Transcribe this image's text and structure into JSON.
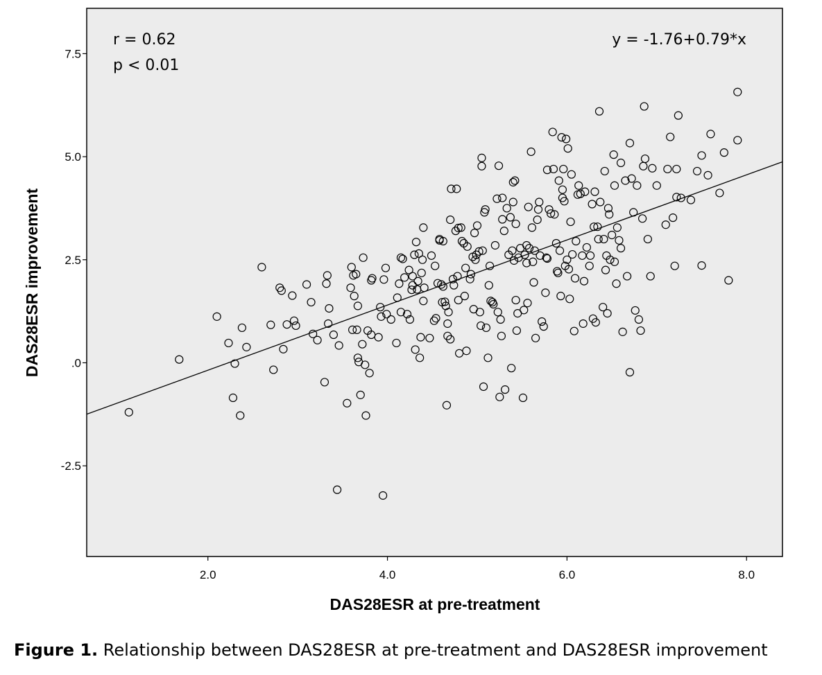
{
  "chart_data": {
    "type": "scatter",
    "xlabel": "DAS28ESR at pre-treatment",
    "ylabel": "DAS28ESR improvement",
    "xlim": [
      0.65,
      8.4
    ],
    "ylim": [
      -4.7,
      8.6
    ],
    "x_ticks": [
      {
        "value": 2.0,
        "label": "2.0"
      },
      {
        "value": 4.0,
        "label": "4.0"
      },
      {
        "value": 6.0,
        "label": "6.0"
      },
      {
        "value": 8.0,
        "label": "8.0"
      }
    ],
    "y_ticks": [
      {
        "value": 7.5,
        "label": "7.5"
      },
      {
        "value": 5.0,
        "label": "5.0"
      },
      {
        "value": 2.5,
        "label": "2.5"
      },
      {
        "value": 0.0,
        "label": ".0"
      },
      {
        "value": -2.5,
        "label": "-2.5"
      }
    ],
    "grid": false,
    "background": "#ececec",
    "marker": "open-circle",
    "annotations": {
      "r": "r = 0.62",
      "p": "p < 0.01",
      "equation": "y = -1.76+0.79*x"
    },
    "fit_line": {
      "intercept": -1.76,
      "slope": 0.79
    },
    "series": [
      {
        "points": [
          [
            1.12,
            -1.2
          ],
          [
            1.68,
            0.08
          ],
          [
            2.1,
            1.12
          ],
          [
            2.23,
            0.48
          ],
          [
            2.28,
            -0.85
          ],
          [
            2.3,
            -0.02
          ],
          [
            2.36,
            -1.28
          ],
          [
            2.38,
            0.85
          ],
          [
            2.43,
            0.38
          ],
          [
            2.6,
            2.32
          ],
          [
            2.7,
            0.92
          ],
          [
            2.73,
            -0.17
          ],
          [
            2.8,
            1.82
          ],
          [
            2.82,
            1.75
          ],
          [
            2.84,
            0.33
          ],
          [
            2.88,
            0.93
          ],
          [
            2.94,
            1.63
          ],
          [
            2.96,
            1.02
          ],
          [
            2.98,
            0.9
          ],
          [
            3.1,
            1.9
          ],
          [
            3.15,
            1.47
          ],
          [
            3.17,
            0.7
          ],
          [
            3.22,
            0.55
          ],
          [
            3.3,
            -0.47
          ],
          [
            3.32,
            1.92
          ],
          [
            3.33,
            2.12
          ],
          [
            3.34,
            0.95
          ],
          [
            3.35,
            1.32
          ],
          [
            3.4,
            0.68
          ],
          [
            3.44,
            -3.08
          ],
          [
            3.46,
            0.42
          ],
          [
            3.55,
            -0.98
          ],
          [
            3.59,
            1.82
          ],
          [
            3.6,
            2.32
          ],
          [
            3.61,
            0.8
          ],
          [
            3.62,
            2.12
          ],
          [
            3.63,
            1.62
          ],
          [
            3.65,
            2.15
          ],
          [
            3.66,
            0.8
          ],
          [
            3.67,
            1.38
          ],
          [
            3.67,
            0.12
          ],
          [
            3.68,
            0.02
          ],
          [
            3.7,
            -0.78
          ],
          [
            3.72,
            0.45
          ],
          [
            3.73,
            2.55
          ],
          [
            3.75,
            -0.05
          ],
          [
            3.76,
            -1.28
          ],
          [
            3.78,
            0.78
          ],
          [
            3.8,
            -0.25
          ],
          [
            3.82,
            0.68
          ],
          [
            3.83,
            2.05
          ],
          [
            3.9,
            0.62
          ],
          [
            3.92,
            1.35
          ],
          [
            3.93,
            1.12
          ],
          [
            3.95,
            -3.22
          ],
          [
            3.96,
            2.02
          ],
          [
            3.98,
            2.3
          ],
          [
            3.99,
            1.18
          ],
          [
            4.04,
            1.05
          ],
          [
            4.1,
            0.48
          ],
          [
            4.11,
            1.58
          ],
          [
            4.13,
            1.92
          ],
          [
            4.15,
            1.23
          ],
          [
            4.17,
            2.52
          ],
          [
            4.19,
            2.07
          ],
          [
            4.22,
            1.18
          ],
          [
            4.24,
            2.25
          ],
          [
            4.25,
            1.05
          ],
          [
            4.27,
            1.77
          ],
          [
            4.28,
            1.88
          ],
          [
            4.28,
            2.1
          ],
          [
            4.3,
            2.62
          ],
          [
            4.31,
            0.32
          ],
          [
            4.32,
            2.93
          ],
          [
            4.33,
            1.78
          ],
          [
            4.34,
            1.98
          ],
          [
            4.35,
            2.65
          ],
          [
            4.36,
            0.12
          ],
          [
            4.37,
            0.62
          ],
          [
            4.38,
            2.18
          ],
          [
            4.39,
            2.5
          ],
          [
            4.4,
            1.5
          ],
          [
            4.4,
            3.28
          ],
          [
            4.41,
            1.82
          ],
          [
            4.47,
            0.6
          ],
          [
            4.49,
            2.6
          ],
          [
            4.52,
            1.02
          ],
          [
            4.53,
            2.35
          ],
          [
            4.54,
            1.08
          ],
          [
            4.56,
            1.93
          ],
          [
            4.58,
            2.97
          ],
          [
            4.58,
            3.0
          ],
          [
            4.6,
            1.9
          ],
          [
            4.61,
            1.47
          ],
          [
            4.62,
            1.85
          ],
          [
            4.64,
            1.48
          ],
          [
            4.65,
            1.38
          ],
          [
            4.66,
            -1.03
          ],
          [
            4.67,
            0.95
          ],
          [
            4.67,
            0.65
          ],
          [
            4.68,
            1.23
          ],
          [
            4.7,
            0.57
          ],
          [
            4.7,
            3.47
          ],
          [
            4.71,
            4.22
          ],
          [
            4.73,
            2.03
          ],
          [
            4.74,
            1.88
          ],
          [
            4.76,
            3.2
          ],
          [
            4.77,
            4.22
          ],
          [
            4.78,
            2.1
          ],
          [
            4.79,
            1.52
          ],
          [
            4.79,
            3.27
          ],
          [
            4.8,
            0.23
          ],
          [
            4.82,
            3.28
          ],
          [
            4.83,
            2.95
          ],
          [
            4.85,
            2.9
          ],
          [
            4.86,
            1.62
          ],
          [
            4.87,
            2.3
          ],
          [
            4.88,
            0.29
          ],
          [
            4.89,
            2.82
          ],
          [
            4.92,
            2.03
          ],
          [
            4.93,
            2.15
          ],
          [
            4.95,
            2.57
          ],
          [
            4.96,
            1.3
          ],
          [
            4.97,
            3.15
          ],
          [
            4.98,
            2.5
          ],
          [
            4.99,
            2.62
          ],
          [
            5.0,
            3.33
          ],
          [
            5.02,
            2.7
          ],
          [
            5.03,
            1.23
          ],
          [
            5.04,
            0.9
          ],
          [
            5.05,
            4.97
          ],
          [
            5.05,
            4.77
          ],
          [
            5.06,
            2.72
          ],
          [
            5.07,
            -0.58
          ],
          [
            5.08,
            3.65
          ],
          [
            5.09,
            3.72
          ],
          [
            5.1,
            0.85
          ],
          [
            5.12,
            0.12
          ],
          [
            5.13,
            1.88
          ],
          [
            5.14,
            2.35
          ],
          [
            5.15,
            1.5
          ],
          [
            5.17,
            1.47
          ],
          [
            5.18,
            1.42
          ],
          [
            5.2,
            2.85
          ],
          [
            5.22,
            3.98
          ],
          [
            5.23,
            1.23
          ],
          [
            5.24,
            4.78
          ],
          [
            5.25,
            -0.83
          ],
          [
            5.26,
            1.05
          ],
          [
            5.27,
            0.65
          ],
          [
            5.28,
            3.48
          ],
          [
            5.3,
            3.2
          ],
          [
            5.31,
            -0.65
          ],
          [
            5.33,
            3.75
          ],
          [
            5.35,
            2.62
          ],
          [
            5.37,
            3.53
          ],
          [
            5.38,
            -0.13
          ],
          [
            5.39,
            2.72
          ],
          [
            5.4,
            3.9
          ],
          [
            5.4,
            4.38
          ],
          [
            5.41,
            2.48
          ],
          [
            5.42,
            4.42
          ],
          [
            5.43,
            1.52
          ],
          [
            5.43,
            3.37
          ],
          [
            5.44,
            0.78
          ],
          [
            5.45,
            1.2
          ],
          [
            5.46,
            2.55
          ],
          [
            5.48,
            2.78
          ],
          [
            5.51,
            -0.85
          ],
          [
            5.52,
            1.28
          ],
          [
            5.53,
            2.62
          ],
          [
            5.55,
            2.42
          ],
          [
            5.56,
            1.45
          ],
          [
            5.57,
            3.78
          ],
          [
            5.58,
            2.78
          ],
          [
            5.6,
            5.12
          ],
          [
            5.61,
            3.28
          ],
          [
            5.62,
            2.45
          ],
          [
            5.63,
            1.95
          ],
          [
            5.64,
            2.72
          ],
          [
            5.65,
            0.6
          ],
          [
            5.67,
            3.47
          ],
          [
            5.68,
            3.72
          ],
          [
            5.69,
            3.9
          ],
          [
            5.7,
            2.6
          ],
          [
            5.72,
            1.0
          ],
          [
            5.74,
            0.88
          ],
          [
            5.76,
            1.7
          ],
          [
            5.77,
            2.55
          ],
          [
            5.78,
            2.53
          ],
          [
            5.78,
            4.68
          ],
          [
            5.8,
            3.72
          ],
          [
            5.82,
            3.62
          ],
          [
            5.84,
            5.6
          ],
          [
            5.85,
            4.7
          ],
          [
            5.86,
            3.6
          ],
          [
            5.88,
            2.9
          ],
          [
            5.89,
            2.22
          ],
          [
            5.9,
            2.18
          ],
          [
            5.91,
            4.42
          ],
          [
            5.92,
            2.72
          ],
          [
            5.93,
            1.62
          ],
          [
            5.94,
            5.47
          ],
          [
            5.95,
            4.2
          ],
          [
            5.95,
            4.0
          ],
          [
            5.96,
            4.7
          ],
          [
            5.97,
            3.92
          ],
          [
            5.98,
            2.35
          ],
          [
            5.99,
            5.43
          ],
          [
            6.0,
            2.5
          ],
          [
            6.01,
            5.2
          ],
          [
            6.02,
            2.27
          ],
          [
            6.03,
            1.55
          ],
          [
            6.04,
            3.42
          ],
          [
            6.05,
            4.57
          ],
          [
            6.06,
            2.63
          ],
          [
            6.08,
            0.77
          ],
          [
            6.09,
            2.05
          ],
          [
            6.1,
            2.95
          ],
          [
            6.12,
            4.08
          ],
          [
            6.13,
            4.3
          ],
          [
            6.15,
            4.1
          ],
          [
            6.17,
            2.6
          ],
          [
            6.18,
            0.95
          ],
          [
            6.19,
            1.98
          ],
          [
            6.2,
            4.15
          ],
          [
            6.22,
            2.8
          ],
          [
            6.25,
            2.35
          ],
          [
            6.26,
            2.6
          ],
          [
            6.28,
            3.85
          ],
          [
            6.29,
            1.07
          ],
          [
            6.3,
            3.3
          ],
          [
            6.31,
            4.15
          ],
          [
            6.32,
            0.98
          ],
          [
            6.34,
            3.3
          ],
          [
            6.35,
            3.0
          ],
          [
            6.36,
            6.1
          ],
          [
            6.37,
            3.9
          ],
          [
            6.4,
            1.35
          ],
          [
            6.41,
            3.0
          ],
          [
            6.42,
            4.65
          ],
          [
            6.43,
            2.25
          ],
          [
            6.44,
            2.6
          ],
          [
            6.45,
            1.2
          ],
          [
            6.46,
            3.75
          ],
          [
            6.47,
            3.6
          ],
          [
            6.48,
            2.5
          ],
          [
            6.5,
            3.1
          ],
          [
            6.52,
            5.05
          ],
          [
            6.53,
            2.45
          ],
          [
            6.53,
            4.3
          ],
          [
            6.55,
            1.92
          ],
          [
            6.58,
            2.97
          ],
          [
            6.6,
            2.78
          ],
          [
            6.6,
            4.85
          ],
          [
            6.62,
            0.75
          ],
          [
            6.65,
            4.42
          ],
          [
            6.67,
            2.1
          ],
          [
            6.7,
            5.33
          ],
          [
            6.7,
            -0.23
          ],
          [
            6.72,
            4.47
          ],
          [
            6.74,
            3.65
          ],
          [
            6.76,
            1.27
          ],
          [
            6.78,
            4.3
          ],
          [
            6.8,
            1.05
          ],
          [
            6.82,
            0.78
          ],
          [
            6.84,
            3.5
          ],
          [
            6.85,
            4.77
          ],
          [
            6.86,
            6.22
          ],
          [
            6.87,
            4.95
          ],
          [
            6.9,
            3.0
          ],
          [
            6.93,
            2.1
          ],
          [
            6.95,
            4.72
          ],
          [
            7.0,
            4.3
          ],
          [
            7.1,
            3.35
          ],
          [
            7.12,
            4.7
          ],
          [
            7.15,
            5.48
          ],
          [
            7.18,
            3.52
          ],
          [
            7.2,
            2.35
          ],
          [
            7.22,
            4.7
          ],
          [
            7.24,
            6.0
          ],
          [
            7.27,
            4.0
          ],
          [
            7.38,
            3.95
          ],
          [
            7.45,
            4.65
          ],
          [
            7.5,
            2.36
          ],
          [
            7.5,
            5.03
          ],
          [
            7.57,
            4.55
          ],
          [
            7.6,
            5.55
          ],
          [
            7.7,
            4.12
          ],
          [
            7.75,
            5.1
          ],
          [
            7.8,
            2.0
          ],
          [
            7.9,
            5.4
          ],
          [
            7.9,
            6.57
          ],
          [
            7.22,
            4.02
          ],
          [
            6.56,
            3.28
          ],
          [
            5.55,
            2.85
          ],
          [
            4.62,
            2.95
          ],
          [
            4.15,
            2.55
          ],
          [
            3.82,
            2.0
          ],
          [
            5.28,
            4.0
          ]
        ]
      }
    ]
  },
  "caption": {
    "label": "Figure 1.",
    "text": " Relationship between DAS28ESR at pre-treatment and DAS28ESR improvement"
  }
}
